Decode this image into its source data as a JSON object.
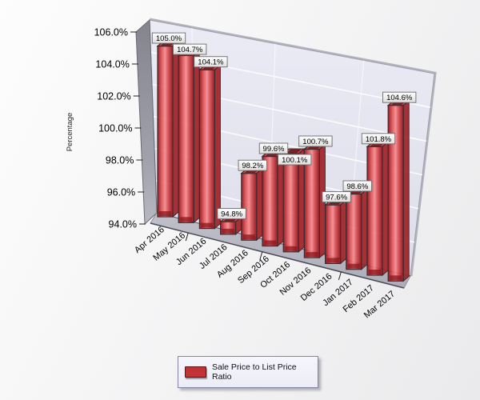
{
  "chart_data": {
    "type": "bar",
    "variant": "3d-column",
    "title": "",
    "categories": [
      "Apr 2016",
      "May 2016",
      "Jun 2016",
      "Jul 2016",
      "Aug 2016",
      "Sep 2016",
      "Oct 2016",
      "Nov 2016",
      "Dec 2016",
      "Jan 2017",
      "Feb 2017",
      "Mar 2017"
    ],
    "series": [
      {
        "name": "Sale Price to List Price Ratio",
        "values": [
          105.0,
          104.7,
          104.1,
          94.8,
          98.2,
          99.6,
          100.1,
          100.7,
          97.6,
          98.6,
          101.8,
          104.6
        ],
        "value_labels": [
          "105.0%",
          "104.7%",
          "104.1%",
          "94.8%",
          "98.2%",
          "99.6%",
          "100.1%",
          "100.7%",
          "97.6%",
          "98.6%",
          "101.8%",
          "104.6%"
        ],
        "color": "#cf3338"
      }
    ],
    "xlabel": "",
    "ylabel": "Percentage",
    "ylim": [
      94.0,
      106.0
    ],
    "ytick_labels": [
      "106.0%",
      "104.0%",
      "102.0%",
      "100.0%",
      "98.0%",
      "96.0%",
      "94.0%"
    ],
    "grid": true,
    "legend_position": "bottom"
  },
  "legend": {
    "label": "Sale Price to List Price Ratio",
    "swatch_color": "#c23338"
  },
  "colors": {
    "bar_red": "#cf3338",
    "back_wall": "#e6e6f2",
    "side_wall": "#90909a",
    "floor": "#b7b7c2",
    "gridline": "#ffffff",
    "callout_border": "#6b6b6b",
    "text": "#111111"
  }
}
